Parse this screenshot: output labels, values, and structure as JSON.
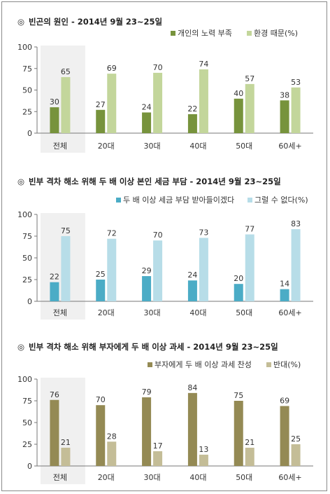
{
  "chart_data": [
    {
      "type": "bar",
      "title": "빈곤의 원인 - 2014년 9월 23~25일",
      "title_mark": "◎",
      "categories": [
        "전체",
        "20대",
        "30대",
        "40대",
        "50대",
        "60세+"
      ],
      "series": [
        {
          "name": "개인의 노력 부족",
          "values": [
            30,
            27,
            24,
            22,
            40,
            38
          ],
          "color": "#77933c"
        },
        {
          "name": "환경 때문(%)",
          "values": [
            65,
            69,
            70,
            74,
            57,
            53
          ],
          "color": "#c3d69b"
        }
      ],
      "ylim": [
        0,
        100
      ],
      "yticks": [
        0,
        25,
        50,
        75,
        100
      ],
      "highlight_category": "전체",
      "grid": false,
      "legend_position": "top-right"
    },
    {
      "type": "bar",
      "title": "빈부 격차 해소 위해 두 배 이상 본인 세금 부담 - 2014년 9월 23~25일",
      "title_mark": "◎",
      "categories": [
        "전체",
        "20대",
        "30대",
        "40대",
        "50대",
        "60세+"
      ],
      "series": [
        {
          "name": "두 배 이상 세금 부담 받아들이겠다",
          "values": [
            22,
            25,
            29,
            24,
            20,
            14
          ],
          "color": "#4bacc6"
        },
        {
          "name": "그럴 수 없다(%)",
          "values": [
            75,
            72,
            70,
            73,
            77,
            83
          ],
          "color": "#b7dde8"
        }
      ],
      "ylim": [
        0,
        100
      ],
      "yticks": [
        0,
        25,
        50,
        75,
        100
      ],
      "highlight_category": "전체",
      "grid": false,
      "legend_position": "top-right"
    },
    {
      "type": "bar",
      "title": "빈부 격차 해소 위해 부자에게 두 배 이상 과세 - 2014년 9월 23~25일",
      "title_mark": "◎",
      "categories": [
        "전체",
        "20대",
        "30대",
        "40대",
        "50대",
        "60세+"
      ],
      "series": [
        {
          "name": "부자에게 두 배 이상 과세 찬성",
          "values": [
            76,
            70,
            79,
            84,
            75,
            69
          ],
          "color": "#948a54"
        },
        {
          "name": "반대(%)",
          "values": [
            21,
            28,
            17,
            13,
            21,
            25
          ],
          "color": "#c4bd97"
        }
      ],
      "ylim": [
        0,
        100
      ],
      "yticks": [
        0,
        25,
        50,
        75,
        100
      ],
      "highlight_category": "전체",
      "grid": false,
      "legend_position": "top-right"
    }
  ]
}
